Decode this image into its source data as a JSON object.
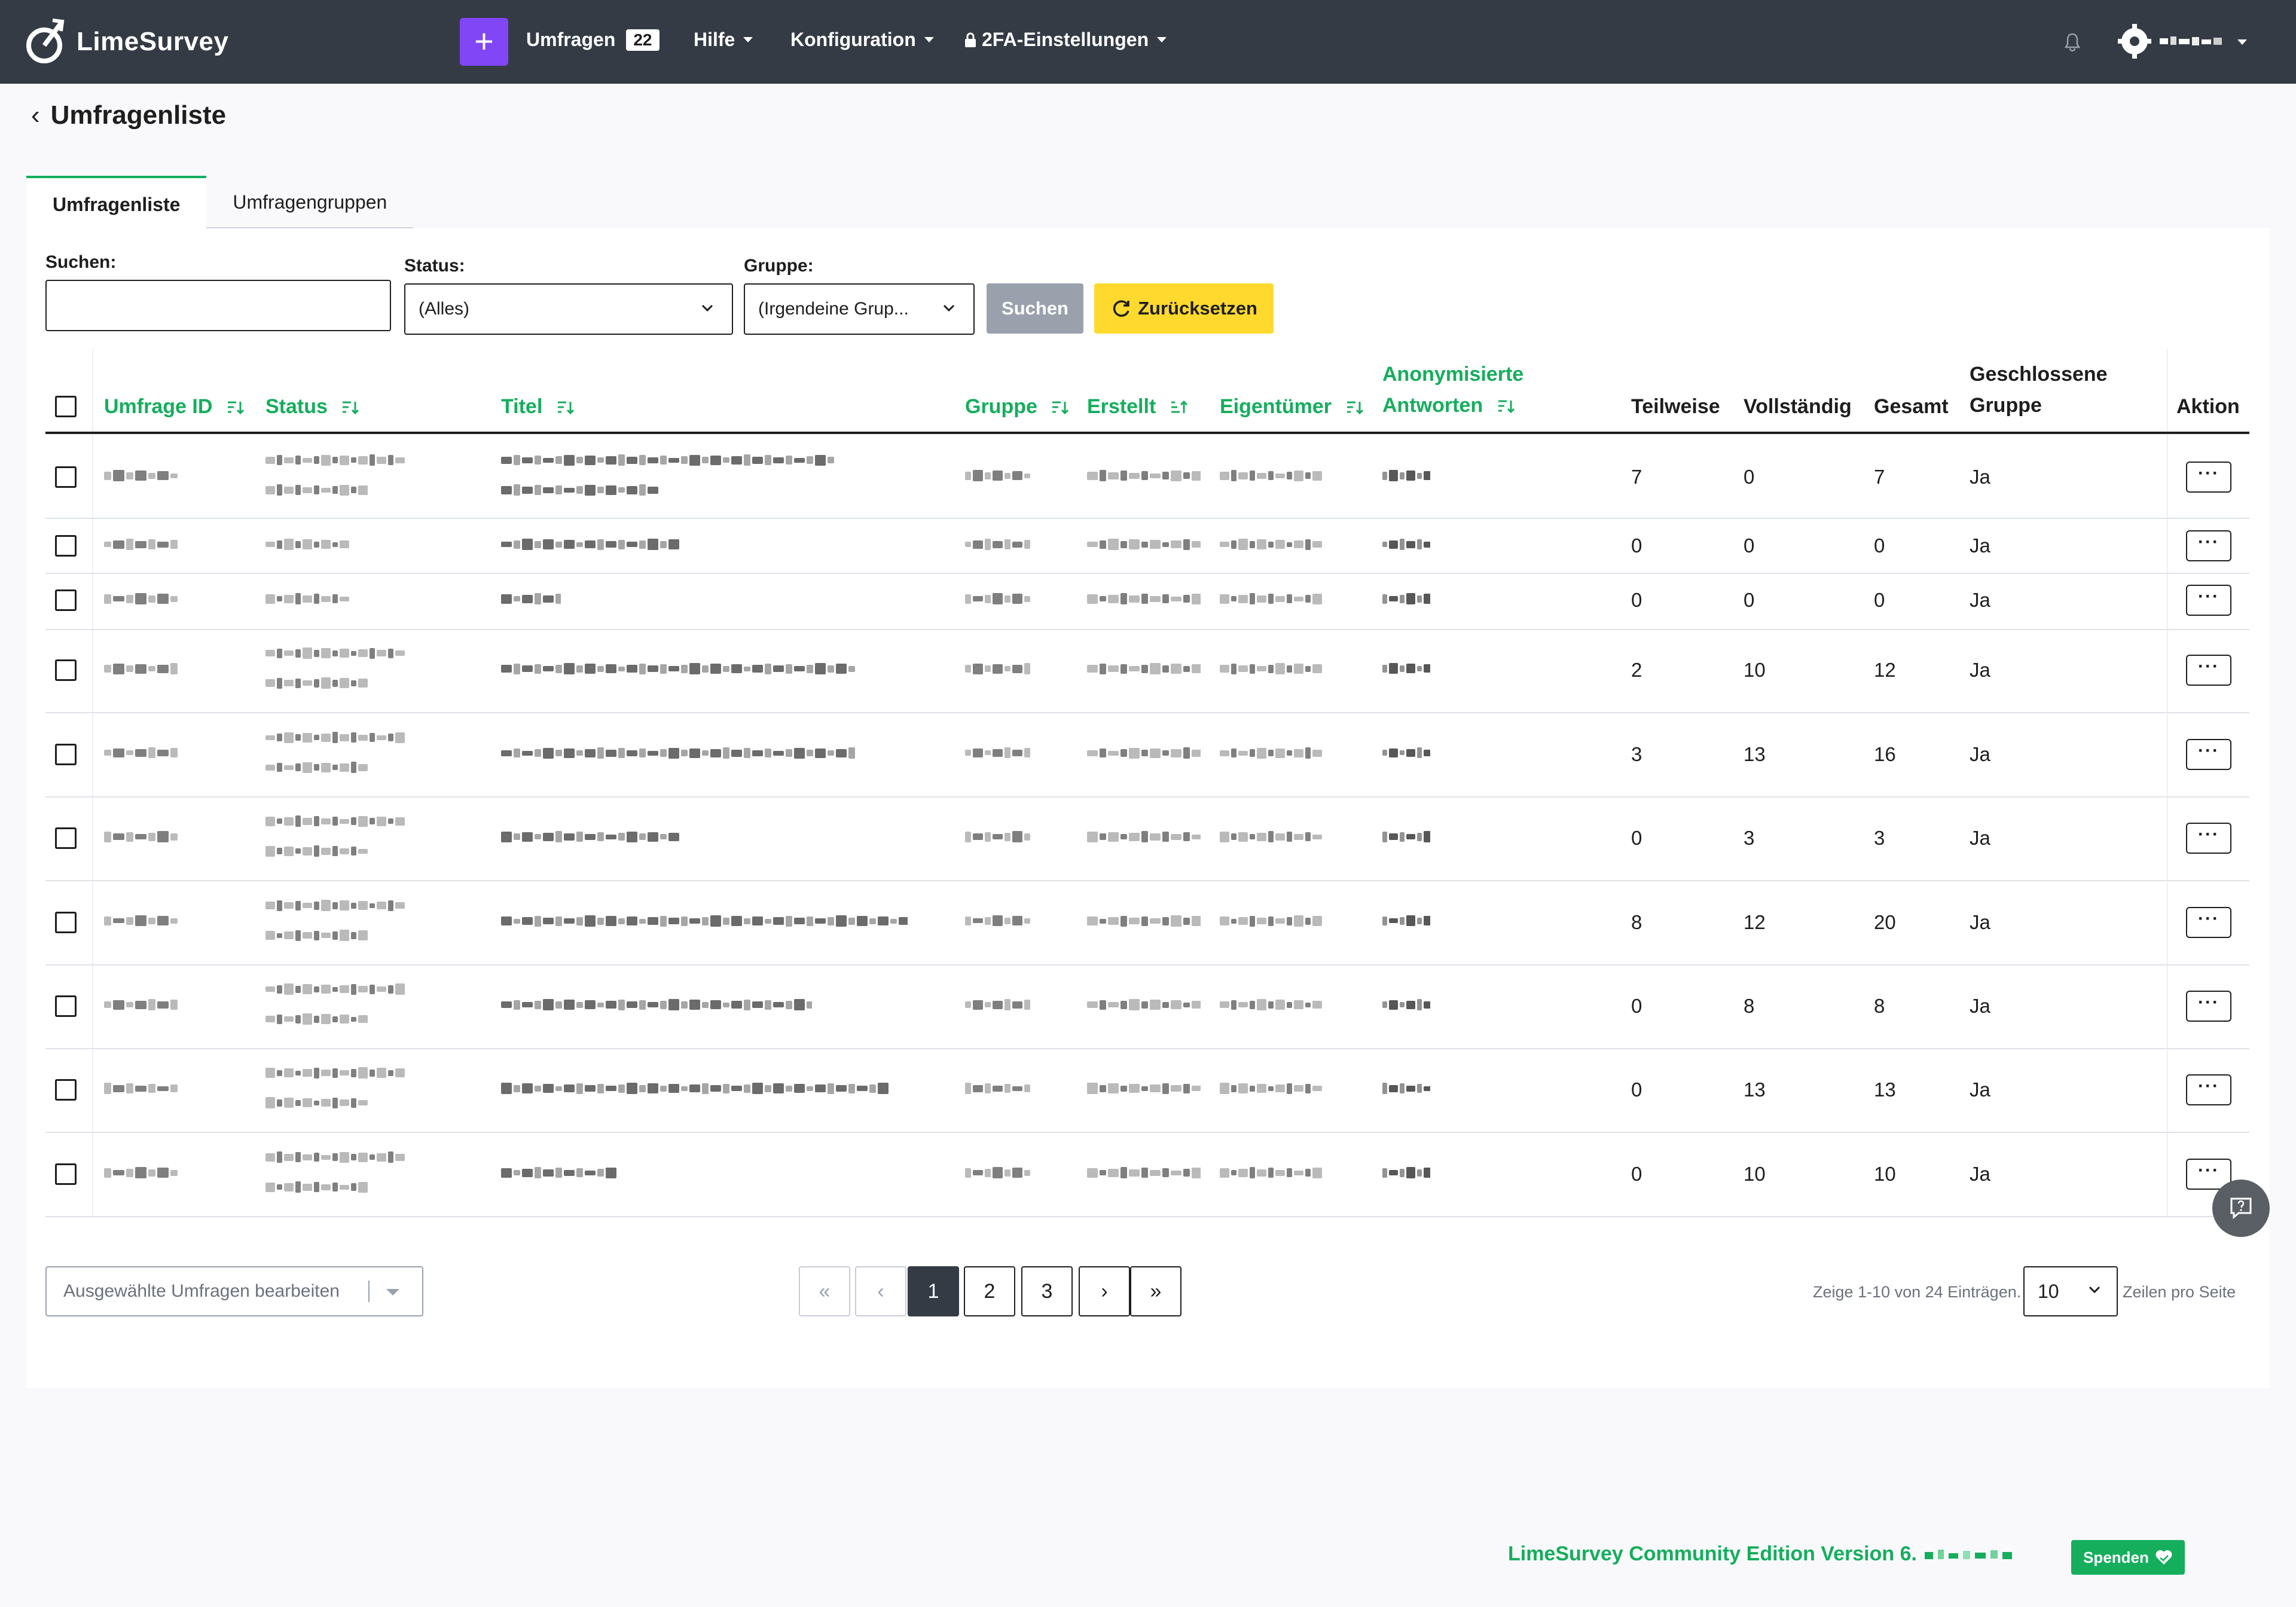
{
  "navbar": {
    "brand": "LimeSurvey",
    "new_button": "+",
    "surveys_label": "Umfragen",
    "surveys_count": "22",
    "help_label": "Hilfe",
    "config_label": "Konfiguration",
    "twofa_label": "2FA-Einstellungen"
  },
  "page": {
    "title": "Umfragenliste"
  },
  "tabs": [
    {
      "label": "Umfragenliste",
      "active": true
    },
    {
      "label": "Umfragengruppen",
      "active": false
    }
  ],
  "filters": {
    "search_label": "Suchen:",
    "search_value": "",
    "status_label": "Status:",
    "status_value": "(Alles)",
    "group_label": "Gruppe:",
    "group_value": "(Irgendeine Grup...",
    "search_button": "Suchen",
    "reset_button": "Zurücksetzen"
  },
  "table": {
    "headers": {
      "id": "Umfrage ID",
      "status": "Status",
      "title": "Titel",
      "group": "Gruppe",
      "created": "Erstellt",
      "owner": "Eigentümer",
      "anon_line1": "Anonymisierte",
      "anon_line2": "Antworten",
      "partial": "Teilweise",
      "complete": "Vollständig",
      "total": "Gesamt",
      "closed_line1": "Geschlossene",
      "closed_line2": "Gruppe",
      "action": "Aktion"
    },
    "rows": [
      {
        "partial": "7",
        "complete": "0",
        "total": "7",
        "closed": "Ja"
      },
      {
        "partial": "0",
        "complete": "0",
        "total": "0",
        "closed": "Ja"
      },
      {
        "partial": "0",
        "complete": "0",
        "total": "0",
        "closed": "Ja"
      },
      {
        "partial": "2",
        "complete": "10",
        "total": "12",
        "closed": "Ja"
      },
      {
        "partial": "3",
        "complete": "13",
        "total": "16",
        "closed": "Ja"
      },
      {
        "partial": "0",
        "complete": "3",
        "total": "3",
        "closed": "Ja"
      },
      {
        "partial": "8",
        "complete": "12",
        "total": "20",
        "closed": "Ja"
      },
      {
        "partial": "0",
        "complete": "8",
        "total": "8",
        "closed": "Ja"
      },
      {
        "partial": "0",
        "complete": "13",
        "total": "13",
        "closed": "Ja"
      },
      {
        "partial": "0",
        "complete": "10",
        "total": "10",
        "closed": "Ja"
      }
    ],
    "action_label": "···"
  },
  "footer": {
    "bulk_edit": "Ausgewählte Umfragen bearbeiten",
    "pager": {
      "first": "«",
      "prev": "‹",
      "pages": [
        "1",
        "2",
        "3"
      ],
      "next": "›",
      "last": "»",
      "current": "1"
    },
    "page_info": "Zeige 1-10 von 24 Einträgen.",
    "per_page_value": "10",
    "per_page_label": "Zeilen pro Seite",
    "version": "LimeSurvey Community Edition Version 6.",
    "donate": "Spenden"
  },
  "colors": {
    "accent": "#14ae5c",
    "navbar": "#343b45",
    "primary_button": "#8146f6",
    "reset_button": "#ffd92e"
  }
}
